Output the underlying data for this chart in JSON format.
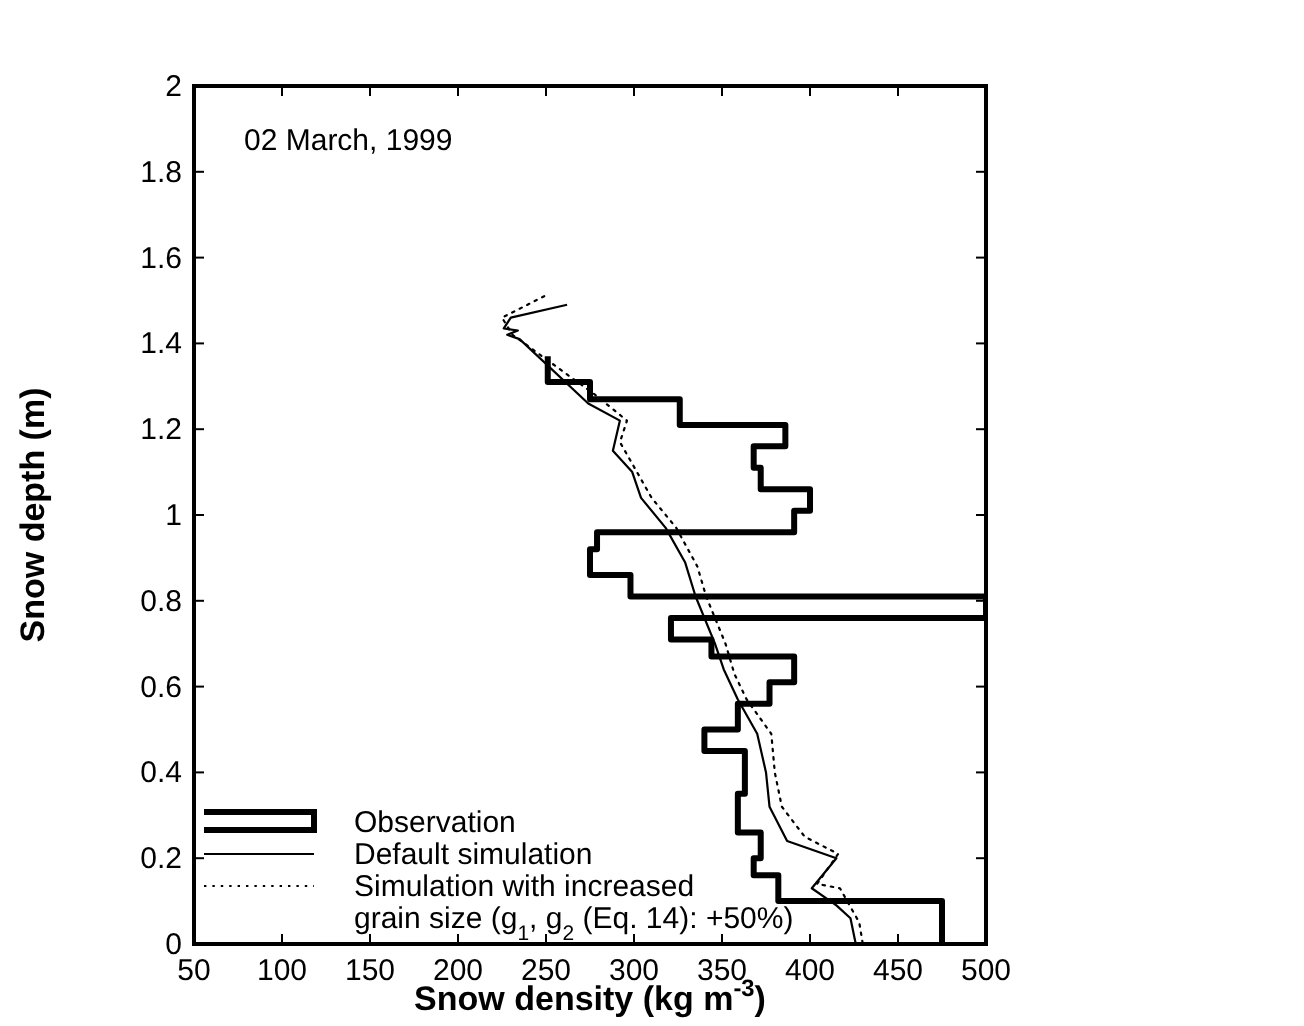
{
  "chart_data": {
    "type": "line",
    "xlabel": "Snow density (kg m$^{-3}$)",
    "ylabel": "Snow depth (m)",
    "annotations": [
      "02 March, 1999"
    ],
    "xlim": [
      50,
      500
    ],
    "xticks": [
      50,
      100,
      150,
      200,
      250,
      300,
      350,
      400,
      450,
      500
    ],
    "ylim": [
      0,
      2
    ],
    "yticks": [
      0,
      0.2,
      0.4,
      0.6,
      0.8,
      1,
      1.2,
      1.4,
      1.6,
      1.8,
      2
    ],
    "grid": false,
    "legend": "bottom left",
    "series": [
      {
        "name": "Observation",
        "color": "#000000",
        "line_style": "solid",
        "x": [
          251,
          251,
          275,
          275,
          326,
          326,
          386,
          386,
          368,
          368,
          372,
          372,
          400,
          400,
          391,
          391,
          279,
          279,
          275,
          275,
          298,
          298,
          500,
          500,
          321,
          321,
          344,
          344,
          391,
          391,
          377,
          377,
          359,
          359,
          340,
          340,
          363,
          363,
          359,
          359,
          372,
          372,
          368,
          368,
          382,
          382,
          475,
          475
        ],
        "values": [
          1.37,
          1.31,
          1.31,
          1.27,
          1.27,
          1.21,
          1.21,
          1.16,
          1.16,
          1.11,
          1.11,
          1.06,
          1.06,
          1.01,
          1.01,
          0.96,
          0.96,
          0.92,
          0.92,
          0.86,
          0.86,
          0.81,
          0.81,
          0.76,
          0.76,
          0.71,
          0.71,
          0.67,
          0.67,
          0.61,
          0.61,
          0.56,
          0.56,
          0.5,
          0.5,
          0.45,
          0.45,
          0.35,
          0.35,
          0.26,
          0.26,
          0.2,
          0.2,
          0.16,
          0.16,
          0.1,
          0.1,
          0
        ]
      },
      {
        "name": "Default simulation",
        "color": "#000000",
        "line_style": "solid",
        "x": [
          262,
          230,
          226,
          234,
          228,
          235,
          274,
          292,
          288,
          299,
          304,
          318,
          329,
          335,
          346,
          351,
          359,
          370,
          375,
          377,
          387,
          415,
          401,
          415,
          423,
          426
        ],
        "values": [
          1.49,
          1.46,
          1.435,
          1.43,
          1.42,
          1.41,
          1.26,
          1.22,
          1.15,
          1.1,
          1.04,
          0.97,
          0.89,
          0.81,
          0.7,
          0.64,
          0.57,
          0.49,
          0.4,
          0.32,
          0.24,
          0.2,
          0.13,
          0.09,
          0.06,
          0
        ]
      },
      {
        "name": "Simulation with increased grain size (g$_{1}$, g$_{2}$ (Eq. 14): +50%)",
        "color": "#000000",
        "line_style": "dotted",
        "x": [
          249,
          225,
          231,
          278,
          296,
          292,
          310,
          324,
          336,
          341,
          352,
          357,
          364,
          378,
          380,
          384,
          397,
          416,
          404,
          417,
          428,
          430
        ],
        "values": [
          1.51,
          1.46,
          1.42,
          1.28,
          1.22,
          1.17,
          1.04,
          0.97,
          0.88,
          0.81,
          0.7,
          0.63,
          0.57,
          0.49,
          0.4,
          0.32,
          0.25,
          0.21,
          0.14,
          0.13,
          0.05,
          0
        ]
      }
    ]
  }
}
